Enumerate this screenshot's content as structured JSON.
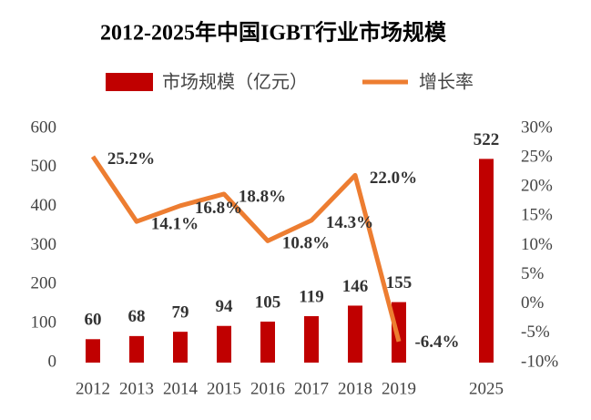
{
  "chart_data": {
    "type": "bar-line",
    "title": "2012-2025年中国IGBT行业市场规模",
    "categories": [
      "2012",
      "2013",
      "2014",
      "2015",
      "2016",
      "2017",
      "2018",
      "2019",
      null,
      "2025"
    ],
    "series": [
      {
        "name": "市场规模（亿元）",
        "type": "bar",
        "color": "#c00000",
        "values": [
          60,
          68,
          79,
          94,
          105,
          119,
          146,
          155,
          null,
          522
        ]
      },
      {
        "name": "增长率",
        "type": "line",
        "axis": "y2",
        "color": "#ed7d31",
        "values": [
          25.2,
          14.1,
          16.8,
          18.8,
          10.8,
          14.3,
          22.0,
          -6.4,
          null,
          null
        ],
        "value_labels": [
          "25.2%",
          "14.1%",
          "16.8%",
          "18.8%",
          "10.8%",
          "14.3%",
          "22.0%",
          "-6.4%",
          null,
          null
        ]
      }
    ],
    "ylim": [
      0,
      600
    ],
    "yticks": [
      0,
      100,
      200,
      300,
      400,
      500,
      600
    ],
    "y2lim": [
      -10,
      30
    ],
    "y2ticks": [
      {
        "value": -10,
        "label": "-10%"
      },
      {
        "value": -5,
        "label": "-5%"
      },
      {
        "value": 0,
        "label": "0%"
      },
      {
        "value": 5,
        "label": "5%"
      },
      {
        "value": 10,
        "label": "10%"
      },
      {
        "value": 15,
        "label": "15%"
      },
      {
        "value": 20,
        "label": "20%"
      },
      {
        "value": 25,
        "label": "25%"
      },
      {
        "value": 30,
        "label": "30%"
      }
    ]
  }
}
